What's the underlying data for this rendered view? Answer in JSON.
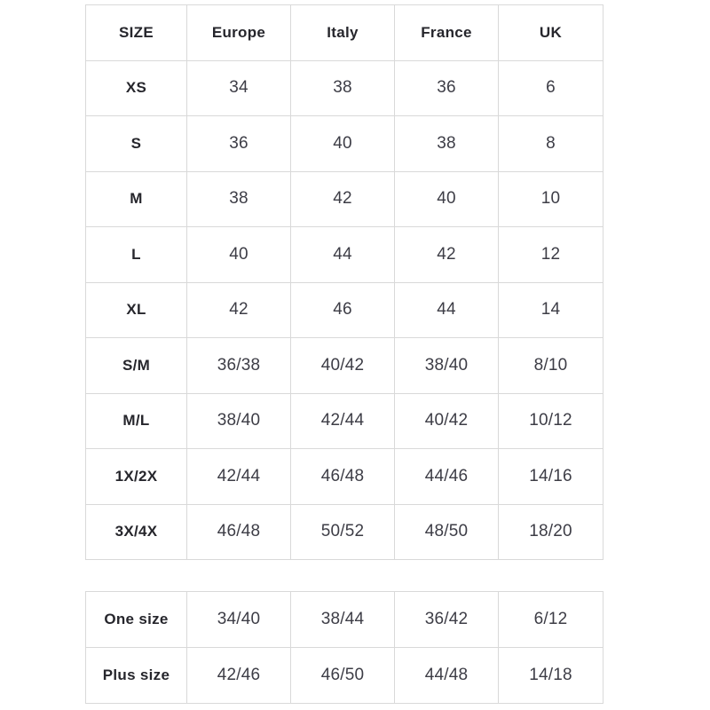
{
  "colors": {
    "background": "#ffffff",
    "border": "#d9d9d9",
    "header_text": "#26262c",
    "value_text": "#3d3d46"
  },
  "chart_data": [
    {
      "type": "table",
      "columns": [
        "SIZE",
        "Europe",
        "Italy",
        "France",
        "UK"
      ],
      "rows": [
        [
          "XS",
          "34",
          "38",
          "36",
          "6"
        ],
        [
          "S",
          "36",
          "40",
          "38",
          "8"
        ],
        [
          "M",
          "38",
          "42",
          "40",
          "10"
        ],
        [
          "L",
          "40",
          "44",
          "42",
          "12"
        ],
        [
          "XL",
          "42",
          "46",
          "44",
          "14"
        ],
        [
          "S/M",
          "36/38",
          "40/42",
          "38/40",
          "8/10"
        ],
        [
          "M/L",
          "38/40",
          "42/44",
          "40/42",
          "10/12"
        ],
        [
          "1X/2X",
          "42/44",
          "46/48",
          "44/46",
          "14/16"
        ],
        [
          "3X/4X",
          "46/48",
          "50/52",
          "48/50",
          "18/20"
        ]
      ]
    },
    {
      "type": "table",
      "columns": [],
      "rows": [
        [
          "One size",
          "34/40",
          "38/44",
          "36/42",
          "6/12"
        ],
        [
          "Plus size",
          "42/46",
          "46/50",
          "44/48",
          "14/18"
        ]
      ]
    }
  ]
}
